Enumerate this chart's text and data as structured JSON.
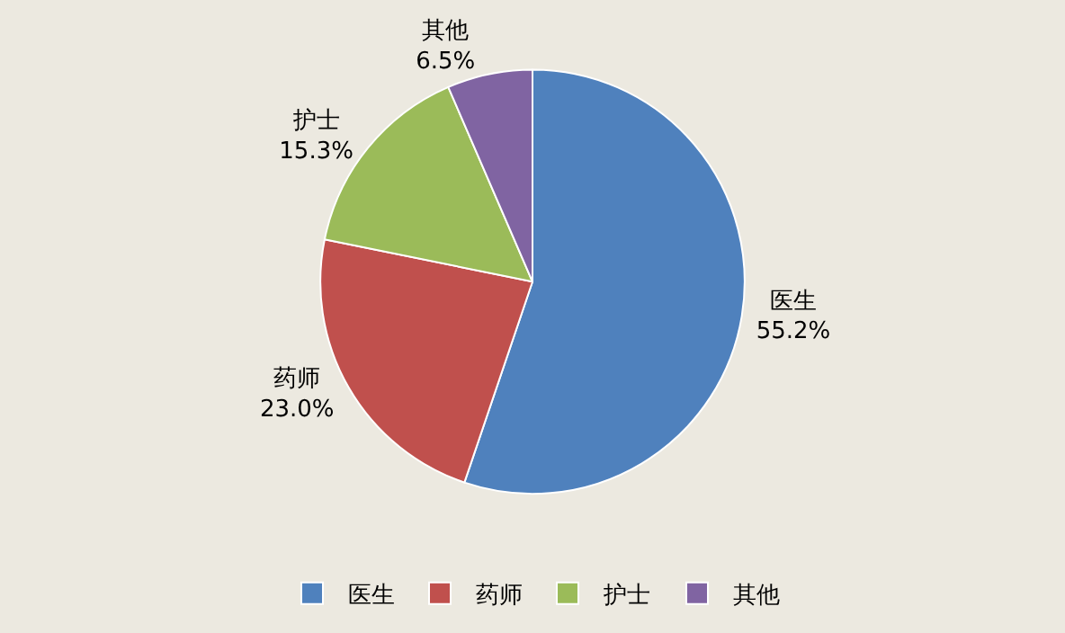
{
  "chart_data": {
    "type": "pie",
    "categories": [
      "医生",
      "药师",
      "护士",
      "其他"
    ],
    "values": [
      55.2,
      23.0,
      15.3,
      6.5
    ],
    "colors": [
      "#4f81bd",
      "#c0504d",
      "#9bbb59",
      "#8064a2"
    ],
    "value_labels": [
      "55.2%",
      "23.0%",
      "15.3%",
      "6.5%"
    ],
    "legend": "bottom"
  }
}
